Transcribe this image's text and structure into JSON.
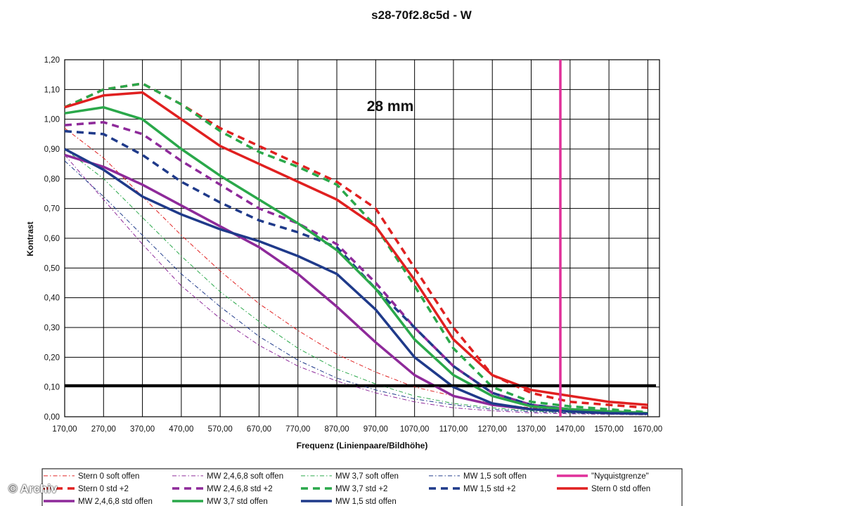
{
  "chart_data": {
    "type": "line",
    "title": "s28-70f2.8c5d - W",
    "annotation": "28 mm",
    "xlabel": "Frequenz (Linienpaare/Bildhöhe)",
    "ylabel": "Kontrast",
    "xlim": [
      170,
      1700
    ],
    "ylim": [
      0,
      1.2
    ],
    "grid": true,
    "legend_position": "bottom",
    "x_ticks": [
      "170,00",
      "270,00",
      "370,00",
      "470,00",
      "570,00",
      "670,00",
      "770,00",
      "870,00",
      "970,00",
      "1070,00",
      "1170,00",
      "1270,00",
      "1370,00",
      "1470,00",
      "1570,00",
      "1670,00"
    ],
    "y_ticks": [
      "0,00",
      "0,10",
      "0,20",
      "0,30",
      "0,40",
      "0,50",
      "0,60",
      "0,70",
      "0,80",
      "0,90",
      "1,00",
      "1,10",
      "1,20"
    ],
    "reference_line": {
      "y": 0.105,
      "color": "#000000"
    },
    "nyquist": {
      "name": "\"Nyquistgrenze\"",
      "x": 1445,
      "color": "#e0309a"
    },
    "series": [
      {
        "name": "Stern 0 soft offen",
        "color": "#e02020",
        "style": "dashdot",
        "width": 1,
        "x": [
          170,
          270,
          370,
          470,
          570,
          670,
          770,
          870,
          970,
          1070,
          1170,
          1270,
          1370,
          1470,
          1570,
          1670
        ],
        "y": [
          0.97,
          0.87,
          0.74,
          0.61,
          0.49,
          0.38,
          0.29,
          0.21,
          0.15,
          0.1,
          0.07,
          0.045,
          0.03,
          0.02,
          0.015,
          0.01
        ]
      },
      {
        "name": "MW 2,4,6,8 soft offen",
        "color": "#8e2a9a",
        "style": "dashdot",
        "width": 1,
        "x": [
          170,
          270,
          370,
          470,
          570,
          670,
          770,
          870,
          970,
          1070,
          1170,
          1270,
          1370,
          1470,
          1570,
          1670
        ],
        "y": [
          0.88,
          0.73,
          0.58,
          0.44,
          0.33,
          0.24,
          0.17,
          0.12,
          0.08,
          0.05,
          0.03,
          0.02,
          0.013,
          0.01,
          0.008,
          0.006
        ]
      },
      {
        "name": "MW 3,7 soft offen",
        "color": "#2aa84a",
        "style": "dashdot",
        "width": 1,
        "x": [
          170,
          270,
          370,
          470,
          570,
          670,
          770,
          870,
          970,
          1070,
          1170,
          1270,
          1370,
          1470,
          1570,
          1670
        ],
        "y": [
          0.9,
          0.8,
          0.67,
          0.54,
          0.42,
          0.32,
          0.23,
          0.16,
          0.11,
          0.07,
          0.045,
          0.03,
          0.02,
          0.013,
          0.01,
          0.008
        ]
      },
      {
        "name": "MW 1,5 soft offen",
        "color": "#1f3a8a",
        "style": "dashdot",
        "width": 1,
        "x": [
          170,
          270,
          370,
          470,
          570,
          670,
          770,
          870,
          970,
          1070,
          1170,
          1270,
          1370,
          1470,
          1570,
          1670
        ],
        "y": [
          0.86,
          0.74,
          0.61,
          0.48,
          0.37,
          0.27,
          0.19,
          0.13,
          0.09,
          0.06,
          0.04,
          0.025,
          0.017,
          0.012,
          0.009,
          0.007
        ]
      },
      {
        "name": "Stern 0 std +2",
        "color": "#e02020",
        "style": "dashed",
        "width": 3.5,
        "x": [
          170,
          270,
          370,
          470,
          570,
          670,
          770,
          870,
          970,
          1070,
          1170,
          1270,
          1370,
          1470,
          1570,
          1670
        ],
        "y": [
          1.04,
          1.1,
          1.12,
          1.05,
          0.97,
          0.91,
          0.85,
          0.79,
          0.7,
          0.5,
          0.3,
          0.14,
          0.08,
          0.05,
          0.04,
          0.03
        ]
      },
      {
        "name": "MW 2,4,6,8 std +2",
        "color": "#8e2a9a",
        "style": "dashed",
        "width": 3.5,
        "x": [
          170,
          270,
          370,
          470,
          570,
          670,
          770,
          870,
          970,
          1070,
          1170,
          1270,
          1370,
          1470,
          1570,
          1670
        ],
        "y": [
          0.98,
          0.99,
          0.95,
          0.86,
          0.78,
          0.7,
          0.65,
          0.58,
          0.45,
          0.3,
          0.17,
          0.08,
          0.04,
          0.025,
          0.018,
          0.012
        ]
      },
      {
        "name": "MW 3,7 std +2",
        "color": "#2aa84a",
        "style": "dashed",
        "width": 3.5,
        "x": [
          170,
          270,
          370,
          470,
          570,
          670,
          770,
          870,
          970,
          1070,
          1170,
          1270,
          1370,
          1470,
          1570,
          1670
        ],
        "y": [
          1.04,
          1.1,
          1.12,
          1.05,
          0.96,
          0.89,
          0.84,
          0.78,
          0.64,
          0.44,
          0.23,
          0.1,
          0.05,
          0.035,
          0.025,
          0.015
        ]
      },
      {
        "name": "MW 1,5 std +2",
        "color": "#1f3a8a",
        "style": "dashed",
        "width": 3.5,
        "x": [
          170,
          270,
          370,
          470,
          570,
          670,
          770,
          870,
          970,
          1070,
          1170,
          1270,
          1370,
          1470,
          1570,
          1670
        ],
        "y": [
          0.96,
          0.95,
          0.88,
          0.79,
          0.72,
          0.66,
          0.62,
          0.57,
          0.43,
          0.3,
          0.17,
          0.08,
          0.04,
          0.025,
          0.018,
          0.012
        ]
      },
      {
        "name": "Stern 0 std offen",
        "color": "#e02020",
        "style": "solid",
        "width": 3.5,
        "x": [
          170,
          270,
          370,
          470,
          570,
          670,
          770,
          870,
          970,
          1070,
          1170,
          1270,
          1370,
          1470,
          1570,
          1670
        ],
        "y": [
          1.04,
          1.08,
          1.09,
          1.0,
          0.91,
          0.85,
          0.79,
          0.73,
          0.64,
          0.46,
          0.26,
          0.14,
          0.09,
          0.07,
          0.05,
          0.04
        ]
      },
      {
        "name": "MW 2,4,6,8 std offen",
        "color": "#8e2a9a",
        "style": "solid",
        "width": 3.5,
        "x": [
          170,
          270,
          370,
          470,
          570,
          670,
          770,
          870,
          970,
          1070,
          1170,
          1270,
          1370,
          1470,
          1570,
          1670
        ],
        "y": [
          0.88,
          0.84,
          0.78,
          0.71,
          0.64,
          0.57,
          0.48,
          0.37,
          0.25,
          0.14,
          0.07,
          0.04,
          0.025,
          0.018,
          0.012,
          0.01
        ]
      },
      {
        "name": "MW 3,7 std offen",
        "color": "#2aa84a",
        "style": "solid",
        "width": 3.5,
        "x": [
          170,
          270,
          370,
          470,
          570,
          670,
          770,
          870,
          970,
          1070,
          1170,
          1270,
          1370,
          1470,
          1570,
          1670
        ],
        "y": [
          1.02,
          1.04,
          1.0,
          0.9,
          0.81,
          0.73,
          0.65,
          0.56,
          0.43,
          0.26,
          0.14,
          0.07,
          0.035,
          0.025,
          0.018,
          0.012
        ]
      },
      {
        "name": "MW 1,5 std offen",
        "color": "#1f3a8a",
        "style": "solid",
        "width": 3.5,
        "x": [
          170,
          270,
          370,
          470,
          570,
          670,
          770,
          870,
          970,
          1070,
          1170,
          1270,
          1370,
          1470,
          1570,
          1670
        ],
        "y": [
          0.9,
          0.83,
          0.74,
          0.68,
          0.63,
          0.59,
          0.54,
          0.48,
          0.36,
          0.2,
          0.1,
          0.045,
          0.025,
          0.018,
          0.012,
          0.01
        ]
      }
    ]
  },
  "watermark": "© Archiv"
}
